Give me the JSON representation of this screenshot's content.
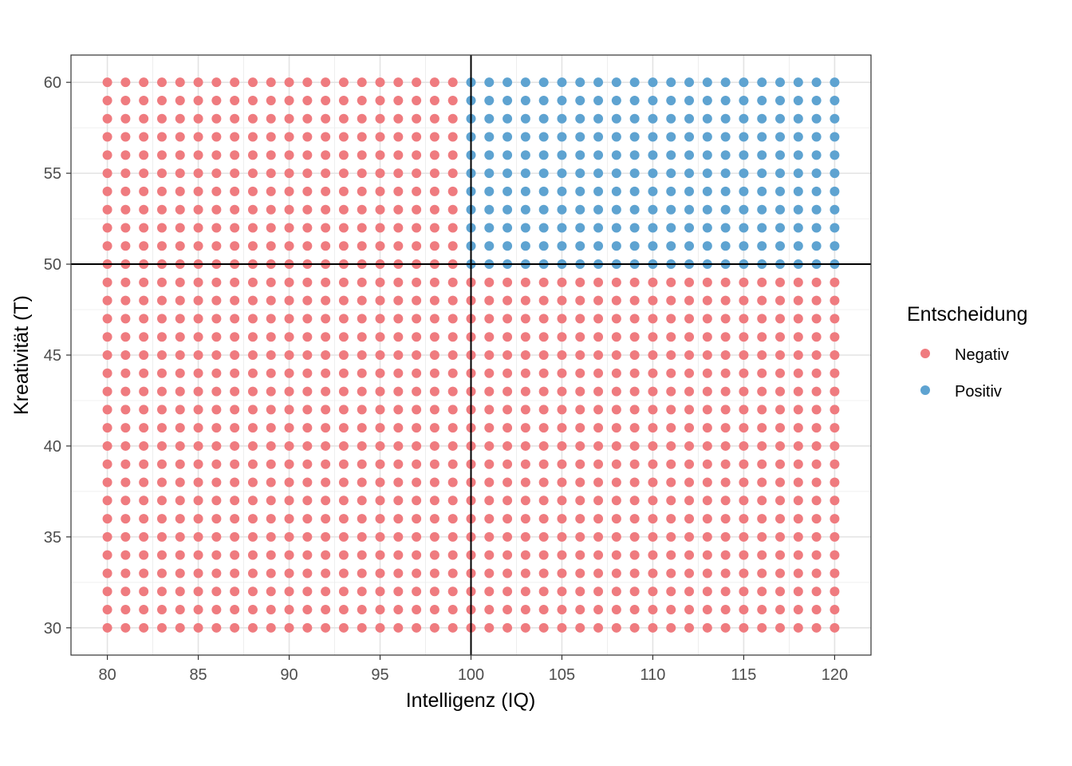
{
  "chart_data": {
    "type": "scatter",
    "xlabel": "Intelligenz (IQ)",
    "ylabel": "Kreativität (T)",
    "x_range": [
      80,
      120
    ],
    "y_range": [
      30,
      60
    ],
    "x_step": 1,
    "y_step": 1,
    "xlim": [
      78,
      122
    ],
    "ylim": [
      28.5,
      61.5
    ],
    "x_ticks": [
      "80",
      "85",
      "90",
      "95",
      "100",
      "105",
      "110",
      "115",
      "120"
    ],
    "y_ticks": [
      "30",
      "35",
      "40",
      "45",
      "50",
      "55",
      "60"
    ],
    "reference_lines": {
      "x": 100,
      "y": 50
    },
    "decision_rule": "Positiv if IQ >= 100 and T >= 50, else Negativ",
    "grid": true,
    "legend": {
      "title": "Entscheidung",
      "placement": "right",
      "entries": [
        {
          "name": "Negativ",
          "color": "#ef7b7f"
        },
        {
          "name": "Positiv",
          "color": "#5ea3d1"
        }
      ]
    }
  }
}
